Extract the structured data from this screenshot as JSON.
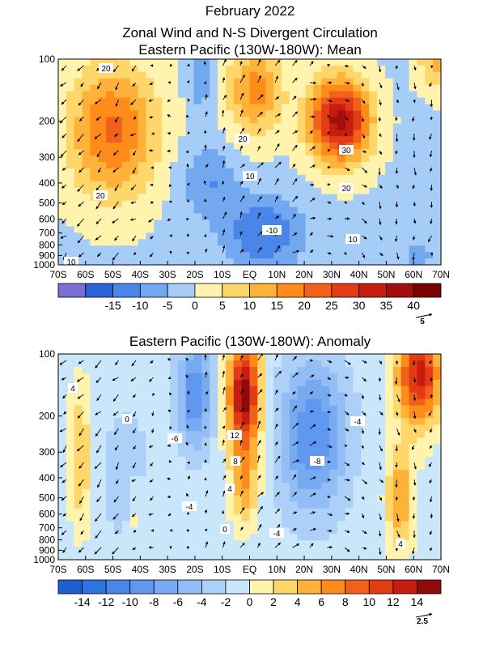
{
  "figure": {
    "title_line1": "February 2022",
    "title_line2": "Zonal Wind and N-S Divergent Circulation"
  },
  "chart_data": [
    {
      "type": "heatmap",
      "title": "Eastern Pacific (130W-180W): Mean",
      "x_ticks": [
        "70S",
        "60S",
        "50S",
        "40S",
        "30S",
        "20S",
        "10S",
        "EQ",
        "10N",
        "20N",
        "30N",
        "40N",
        "50N",
        "60N",
        "70N"
      ],
      "y_ticks": [
        "100",
        "200",
        "300",
        "400",
        "500",
        "600",
        "700",
        "800",
        "900",
        "1000"
      ],
      "y_scale": "log-pressure",
      "ylim": [
        1000,
        100
      ],
      "contour_labels": [
        "20",
        "20",
        "20",
        "30",
        "10",
        "20",
        "-10",
        "10",
        "10"
      ],
      "colorbar": {
        "levels": [
          -20,
          -15,
          -10,
          -5,
          0,
          5,
          10,
          15,
          20,
          25,
          30,
          35,
          40,
          45
        ],
        "colors": [
          "#7a6fd6",
          "#2a62d8",
          "#4a86e8",
          "#72a8f0",
          "#a6cdf7",
          "#fff3ad",
          "#ffd66a",
          "#ffb23a",
          "#ff8c1a",
          "#f2611b",
          "#e33b16",
          "#c71d10",
          "#a30d0b",
          "#7d0000"
        ],
        "tick_labels": [
          "-15",
          "-10",
          "-5",
          "0",
          "5",
          "10",
          "15",
          "20",
          "25",
          "30",
          "35",
          "40"
        ]
      },
      "reference_vector": "5"
    },
    {
      "type": "heatmap",
      "title": "Eastern Pacific (130W-180W): Anomaly",
      "x_ticks": [
        "70S",
        "60S",
        "50S",
        "40S",
        "30S",
        "20S",
        "10S",
        "EQ",
        "10N",
        "20N",
        "30N",
        "40N",
        "50N",
        "60N",
        "70N"
      ],
      "y_ticks": [
        "100",
        "200",
        "300",
        "400",
        "500",
        "600",
        "700",
        "800",
        "900",
        "1000"
      ],
      "y_scale": "log-pressure",
      "ylim": [
        1000,
        100
      ],
      "contour_labels": [
        "4",
        "0",
        "-6",
        "12",
        "8",
        "4",
        "-4",
        "0",
        "-4",
        "-4",
        "-8",
        "4"
      ],
      "colorbar": {
        "levels": [
          -16,
          -14,
          -12,
          -10,
          -8,
          -6,
          -4,
          -2,
          0,
          2,
          4,
          6,
          8,
          10,
          12,
          14,
          16
        ],
        "colors": [
          "#1e5fd0",
          "#2f73df",
          "#4a86e8",
          "#5f98ee",
          "#78aaf2",
          "#92bdf5",
          "#acd0f8",
          "#c9e6fb",
          "#fff3ad",
          "#ffd66a",
          "#ffb23a",
          "#ff8c1a",
          "#f2611b",
          "#e33b16",
          "#c71d10",
          "#8e0b0b"
        ],
        "tick_labels": [
          "-14",
          "-12",
          "-10",
          "-8",
          "-6",
          "-4",
          "-2",
          "0",
          "2",
          "4",
          "6",
          "8",
          "10",
          "12",
          "14"
        ]
      },
      "reference_vector": "2.5"
    }
  ]
}
